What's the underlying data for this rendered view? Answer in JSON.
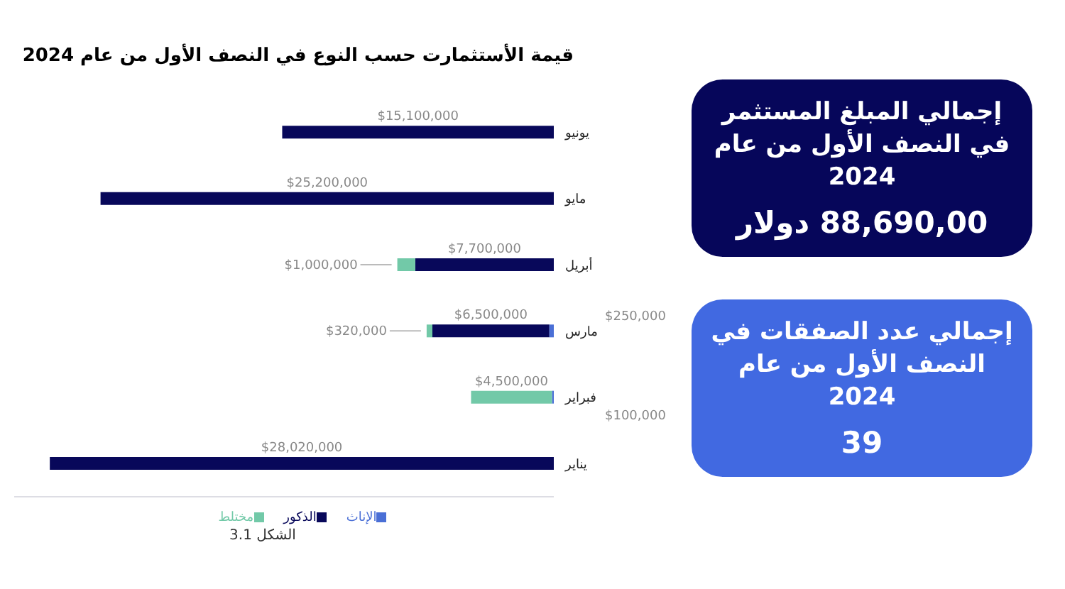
{
  "chart_data": [
    {
      "type": "bar",
      "orientation": "horizontal",
      "stacked": true,
      "title": "قيمة الأستثمارت حسب النوع في النصف الأول من عام 2024",
      "categories": [
        "يونيو",
        "مايو",
        "أبريل",
        "مارس",
        "فبراير",
        "يناير"
      ],
      "series": [
        {
          "name": "الإناث",
          "color": "#4a6fd6",
          "values": [
            null,
            null,
            null,
            250000,
            100000,
            null
          ],
          "value_labels": [
            null,
            null,
            null,
            "$250,000",
            "$100,000",
            null
          ]
        },
        {
          "name": "الذكور",
          "color": "#08085a",
          "values": [
            15100000,
            25200000,
            7700000,
            6500000,
            null,
            28020000
          ],
          "value_labels": [
            "$15,100,000",
            "$25,200,000",
            "$7,700,000",
            "$6,500,000",
            null,
            "$28,020,000"
          ]
        },
        {
          "name": "مختلط",
          "color": "#72c9a8",
          "values": [
            null,
            null,
            1000000,
            320000,
            4500000,
            null
          ],
          "value_labels": [
            null,
            null,
            "$1,000,000",
            "$320,000",
            "$4,500,000",
            null
          ]
        }
      ],
      "xlim": [
        30000000,
        0
      ],
      "tick_labels": "y",
      "legend": "bottom",
      "annotations": [
        "الشكل 3.1"
      ]
    },
    {
      "type": "other",
      "title": "إجمالي المبلغ المستثمر في النصف الأول من عام 2024",
      "annotations": [
        "88,690,00 دولار"
      ],
      "color": "#06065a"
    },
    {
      "type": "other",
      "title": "إجمالي عدد الصفقات في النصف الأول من عام 2024",
      "annotations": [
        "39"
      ],
      "color": "#4169e1"
    }
  ]
}
